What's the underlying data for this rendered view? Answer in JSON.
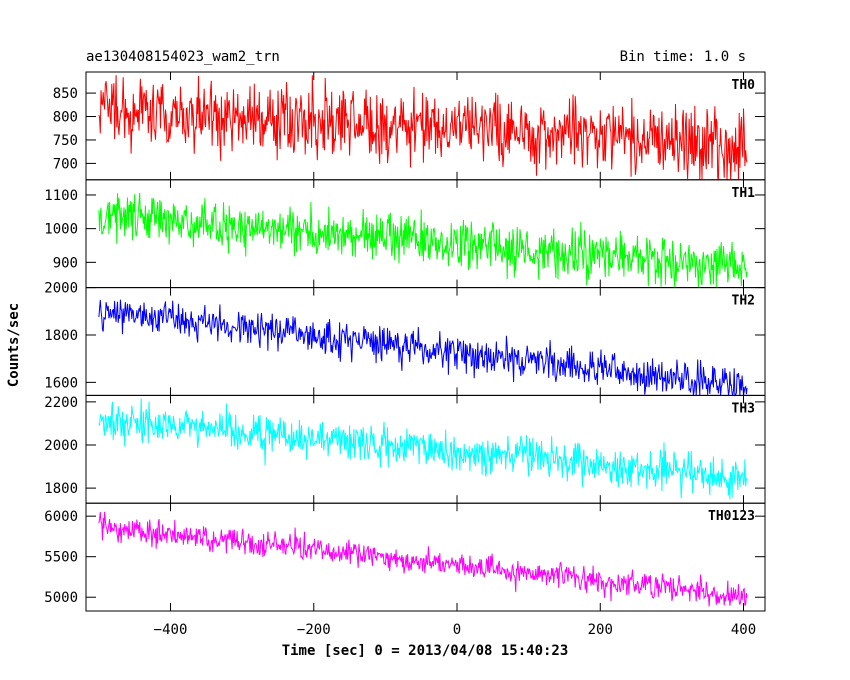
{
  "chart_data": {
    "type": "line",
    "header_left": "ae130408154023_wam2_trn",
    "header_right": "Bin time: 1.0 s",
    "xlabel": "Time [sec] 0 = 2013/04/08 15:40:23",
    "ylabel": "Counts/sec",
    "xlim": [
      -518,
      430
    ],
    "x_ticks": [
      -400,
      -200,
      0,
      200,
      400
    ],
    "x_range": [
      -500,
      405
    ],
    "grid": false,
    "panels": [
      {
        "name": "TH0",
        "color": "#ff0000",
        "ylim": [
          665,
          895
        ],
        "y_ticks": [
          700,
          750,
          800,
          850
        ],
        "start_level": 815,
        "end_level": 740,
        "noise": 38,
        "clip_top": 895,
        "clip_bottom": 665
      },
      {
        "name": "TH1",
        "color": "#00ff00",
        "ylim": [
          825,
          1145
        ],
        "y_ticks": [
          900,
          1000,
          1100
        ],
        "start_level": 1040,
        "end_level": 885,
        "noise": 35,
        "clip_top": 1145,
        "clip_bottom": 825
      },
      {
        "name": "TH2",
        "color": "#0000ff",
        "ylim": [
          1545,
          2000
        ],
        "y_ticks": [
          1600,
          1800,
          2000
        ],
        "start_level": 1905,
        "end_level": 1580,
        "noise": 38,
        "clip_top": 1995,
        "clip_bottom": 1545
      },
      {
        "name": "TH3",
        "color": "#00ffff",
        "ylim": [
          1730,
          2230
        ],
        "y_ticks": [
          1800,
          2000,
          2200
        ],
        "start_level": 2120,
        "end_level": 1845,
        "noise": 45,
        "clip_top": 2230,
        "clip_bottom": 1730
      },
      {
        "name": "TH0123",
        "color": "#ff00ff",
        "ylim": [
          4830,
          6160
        ],
        "y_ticks": [
          5000,
          5500,
          6000
        ],
        "start_level": 5880,
        "end_level": 5000,
        "noise": 80,
        "clip_top": 6160,
        "clip_bottom": 4830
      }
    ]
  }
}
